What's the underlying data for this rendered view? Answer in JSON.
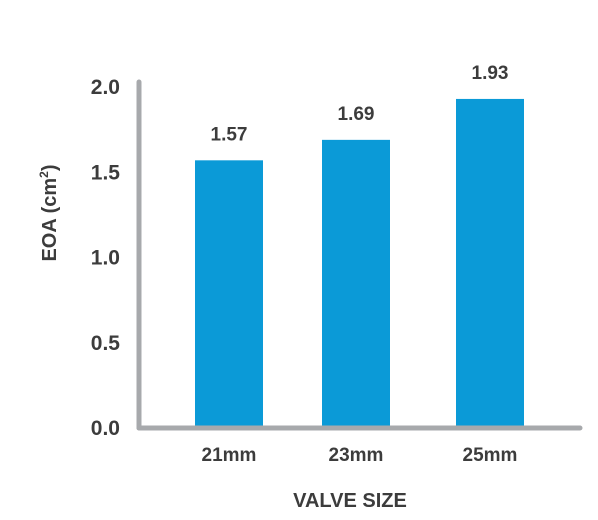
{
  "chart_data": {
    "type": "bar",
    "categories": [
      "21mm",
      "23mm",
      "25mm"
    ],
    "values": [
      1.57,
      1.69,
      1.93
    ],
    "value_labels": [
      "1.57",
      "1.69",
      "1.93"
    ],
    "title": "",
    "xlabel": "VALVE SIZE",
    "ylabel": "EOA (cm",
    "ylabel_superscript": "2",
    "ylabel_suffix": ")",
    "ylim": [
      0,
      2.0
    ],
    "yticks": [
      {
        "value": 0.0,
        "label": "0.0"
      },
      {
        "value": 0.5,
        "label": "0.5"
      },
      {
        "value": 1.0,
        "label": "1.0"
      },
      {
        "value": 1.5,
        "label": "1.5"
      },
      {
        "value": 2.0,
        "label": "2.0"
      }
    ],
    "grid": false,
    "legend": "none"
  },
  "colors": {
    "bar": "#0b9ad7",
    "axis": "#a7a9ac",
    "text": "#3c3c3c"
  }
}
